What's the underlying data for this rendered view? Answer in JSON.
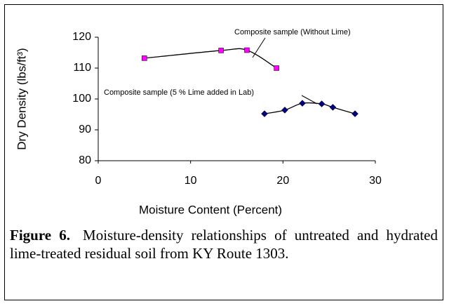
{
  "chart_data": {
    "type": "line",
    "x_label": "Moisture Content (Percent)",
    "y_label": "Dry Density (lbs/ft³)",
    "xlim": [
      0,
      30
    ],
    "xticks": [
      0,
      10,
      20,
      30
    ],
    "ylim": [
      80,
      120
    ],
    "yticks": [
      80,
      90,
      100,
      110,
      120
    ],
    "series": [
      {
        "name": "Composite sample (Without Lime)",
        "color": "#ff00ff",
        "marker": "square",
        "x": [
          5.0,
          13.3,
          16.1,
          19.3
        ],
        "values": [
          113.2,
          115.7,
          115.8,
          110.0
        ]
      },
      {
        "name": "Composite sample (5 % Lime added in Lab)",
        "color": "#000080",
        "marker": "diamond",
        "x": [
          18.0,
          20.2,
          22.1,
          24.2,
          25.4,
          27.8
        ],
        "values": [
          95.2,
          96.4,
          98.6,
          98.4,
          97.3,
          95.2
        ]
      }
    ]
  },
  "caption": {
    "label": "Figure 6.",
    "text": "Moisture-density relationships of untreated and hydrated lime-treated residual soil from KY Route 1303."
  }
}
